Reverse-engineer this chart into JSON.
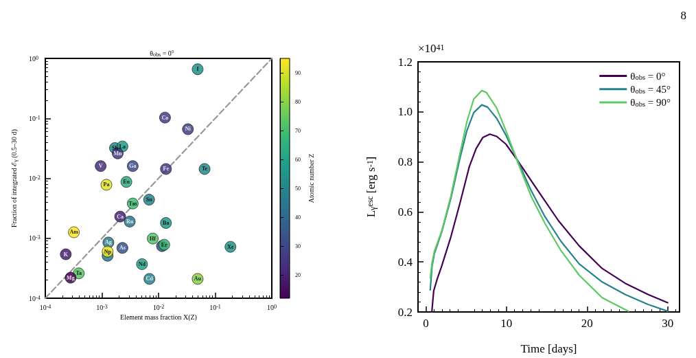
{
  "chart_data": [
    {
      "type": "scatter",
      "title": "θ$_{obs}$ = 0°",
      "xlabel": "Element mass fraction X(Z)",
      "ylabel": "Fraction of integrated ℰ$_{γ}$ (0.5–30 d)",
      "clabel": "Atomic number Z",
      "log": "xy",
      "grid": false,
      "marker": "circle",
      "xlim": [
        0.0001,
        1
      ],
      "ylim": [
        0.0001,
        1
      ],
      "xticks": [
        {
          "value": 0.0001,
          "label": "10$^{-4}$"
        },
        {
          "value": 0.001,
          "label": "10$^{-3}$"
        },
        {
          "value": 0.01,
          "label": "10$^{-2}$"
        },
        {
          "value": 0.1,
          "label": "10$^{-1}$"
        },
        {
          "value": 1,
          "label": "10$^{0}$"
        }
      ],
      "yticks": [
        {
          "value": 0.0001,
          "label": "10$^{-4}$"
        },
        {
          "value": 0.001,
          "label": "10$^{-3}$"
        },
        {
          "value": 0.01,
          "label": "10$^{-2}$"
        },
        {
          "value": 0.1,
          "label": "10$^{-1}$"
        },
        {
          "value": 1,
          "label": "10$^{0}$"
        }
      ],
      "clim": [
        12,
        95
      ],
      "cticks": [
        20,
        30,
        40,
        50,
        60,
        70,
        80,
        90
      ],
      "series": [
        {
          "type": "line",
          "color": "#999999",
          "line_style": "dashed",
          "marker": "none",
          "x": [
            0.0001,
            1
          ],
          "values": [
            0.0001,
            1
          ]
        },
        {
          "type": "scatter",
          "x": [
            0.0115,
            0.00126,
            0.049,
            0.013,
            0.033,
            0.0017,
            0.0023,
            0.0019,
            0.00095,
            0.0035,
            0.0135,
            0.065,
            0.0012,
            0.0027,
            0.0035,
            0.0068,
            0.0021,
            0.0031,
            0.0135,
            0.00032,
            0.0013,
            0.0079,
            0.0126,
            0.186,
            0.0023,
            0.00126,
            0.00023,
            0.0051,
            0.00039,
            0.00028,
            0.0069,
            0.049
          ],
          "values": [
            0.00074,
            0.00051,
            0.66,
            0.103,
            0.066,
            0.032,
            0.034,
            0.026,
            0.016,
            0.016,
            0.0143,
            0.0143,
            0.0078,
            0.0087,
            0.0038,
            0.0044,
            0.0023,
            0.0019,
            0.0018,
            0.00126,
            0.00085,
            0.00099,
            0.00078,
            0.00072,
            0.00069,
            0.0006,
            0.00054,
            0.00037,
            0.00026,
            0.00022,
            0.00021,
            0.00021
          ],
          "colors": [
            "#3a528a",
            "#2b778e",
            "#238e8c",
            "#423d83",
            "#414084",
            "#24888d",
            "#209b8a",
            "#44367f",
            "#462e7b",
            "#3d4b89",
            "#433981",
            "#248b8c",
            "#dee328",
            "#2bab81",
            "#3fbb73",
            "#25858d",
            "#472373",
            "#2c748e",
            "#21988a",
            "#fde725",
            "#287d8e",
            "#52c368",
            "#39b977",
            "#22928b",
            "#3a528a",
            "#ede526",
            "#471f6f",
            "#24a386",
            "#58c565",
            "#440154",
            "#27808e",
            "#81d24c"
          ],
          "cvalues": [
            33,
            45,
            53,
            27,
            28,
            51,
            57,
            25,
            23,
            31,
            26,
            52,
            91,
            63,
            69,
            50,
            20,
            44,
            56,
            95,
            47,
            72,
            68,
            54,
            33,
            93,
            19,
            60,
            73,
            12,
            48,
            79
          ],
          "value_labels": [
            null,
            null,
            "I",
            "Co",
            "Ni",
            "Sb",
            "La",
            "Mn",
            "V",
            "Ga",
            "Fe",
            "Te",
            "Pa",
            "Eu",
            "Tm",
            "Sn",
            "Ca",
            "Ru",
            "Ba",
            "Am",
            "Ag",
            "Hf",
            "Er",
            "Xe",
            "As",
            "Np",
            "K",
            "Nd",
            "Ta",
            "Mg",
            "Cd",
            "Au"
          ]
        }
      ]
    },
    {
      "type": "line",
      "ylabel": "L$_{γ}$$^{esc}$ [erg s$^{-1}$]",
      "xlabel": "Time [days]",
      "legend": "top right",
      "grid": false,
      "marker": "none",
      "line_style": "solid",
      "annotations": [
        "×10$^{41}$",
        "8"
      ],
      "xlim": [
        -0.975,
        31.475
      ],
      "xticks": [
        0,
        10,
        20,
        30
      ],
      "ylim": [
        0.2,
        1.2
      ],
      "yticks": [
        0.2,
        0.4,
        0.6,
        0.8,
        {
          "value": 1,
          "label": "1.0"
        },
        1.2
      ],
      "series": [
        {
          "name": "θ$_{obs}$ = 0°",
          "color": "#440154",
          "x": [
            0.74,
            0.97,
            1.39,
            1.96,
            3.1,
            4.24,
            5.38,
            6.23,
            7.08,
            7.94,
            8.79,
            9.93,
            11.35,
            13.05,
            14.76,
            16.47,
            19.03,
            21.87,
            24.72,
            27.56,
            30.0
          ],
          "values": [
            0.2,
            0.284,
            0.33,
            0.383,
            0.5,
            0.636,
            0.78,
            0.853,
            0.898,
            0.911,
            0.902,
            0.871,
            0.807,
            0.726,
            0.645,
            0.564,
            0.464,
            0.374,
            0.315,
            0.27,
            0.237
          ]
        },
        {
          "name": "θ$_{obs}$ = 45°",
          "color": "#26828e",
          "x": [
            0.54,
            0.77,
            1.05,
            1.96,
            3.1,
            4.24,
            5.09,
            5.94,
            6.94,
            7.65,
            8.79,
            9.93,
            11.35,
            13.05,
            14.76,
            16.75,
            19.03,
            21.87,
            24.72,
            27.56,
            30.0
          ],
          "values": [
            0.288,
            0.383,
            0.433,
            0.519,
            0.654,
            0.816,
            0.925,
            0.997,
            1.028,
            1.019,
            0.974,
            0.907,
            0.807,
            0.686,
            0.582,
            0.483,
            0.392,
            0.32,
            0.27,
            0.23,
            0.203
          ]
        },
        {
          "name": "θ$_{obs}$ = 90°",
          "color": "#5ec962",
          "x": [
            0.54,
            0.77,
            1.05,
            1.96,
            3.1,
            4.24,
            5.09,
            5.94,
            6.94,
            7.5,
            8.79,
            9.93,
            11.35,
            13.05,
            14.76,
            16.75,
            19.03,
            21.87,
            25.14
          ],
          "values": [
            0.336,
            0.397,
            0.442,
            0.523,
            0.663,
            0.834,
            0.961,
            1.051,
            1.085,
            1.078,
            1.015,
            0.925,
            0.803,
            0.663,
            0.555,
            0.446,
            0.347,
            0.257,
            0.203
          ]
        }
      ]
    }
  ]
}
